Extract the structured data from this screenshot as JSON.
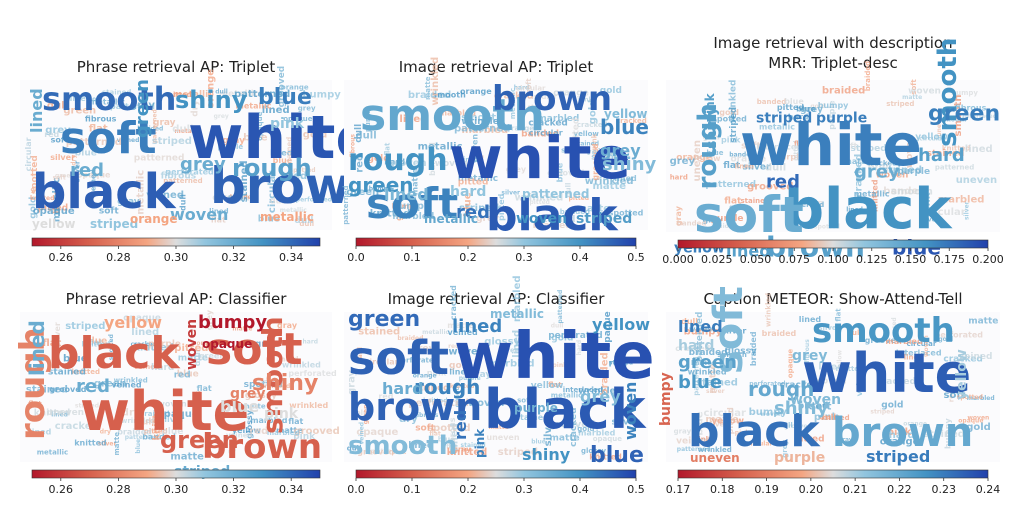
{
  "chart_data": [
    {
      "type": "wordcloud",
      "title": "Phrase retrieval AP: Triplet",
      "colorbar": {
        "min": 0.25,
        "max": 0.35,
        "ticks": [
          "0.26",
          "0.28",
          "0.30",
          "0.32",
          "0.34"
        ],
        "tick_values": [
          0.26,
          0.28,
          0.3,
          0.32,
          0.34
        ],
        "colormap": "coolwarm"
      },
      "words": [
        {
          "text": "white",
          "value": 0.345
        },
        {
          "text": "brown",
          "value": 0.342
        },
        {
          "text": "black",
          "value": 0.343
        },
        {
          "text": "soft",
          "value": 0.335
        },
        {
          "text": "smooth",
          "value": 0.34
        },
        {
          "text": "shiny",
          "value": 0.33
        },
        {
          "text": "blue",
          "value": 0.335
        },
        {
          "text": "rough",
          "value": 0.325
        },
        {
          "text": "grey",
          "value": 0.32
        },
        {
          "text": "lined",
          "value": 0.32
        },
        {
          "text": "green",
          "value": 0.33
        },
        {
          "text": "red",
          "value": 0.32
        },
        {
          "text": "pink",
          "value": 0.31
        },
        {
          "text": "woven",
          "value": 0.32
        },
        {
          "text": "striped",
          "value": 0.31
        },
        {
          "text": "yellow",
          "value": 0.3
        },
        {
          "text": "metallic",
          "value": 0.29
        },
        {
          "text": "orange",
          "value": 0.29
        }
      ]
    },
    {
      "type": "wordcloud",
      "title": "Image retrieval AP: Triplet",
      "colorbar": {
        "min": 0.0,
        "max": 0.5,
        "ticks": [
          "0.0",
          "0.1",
          "0.2",
          "0.3",
          "0.4",
          "0.5"
        ],
        "tick_values": [
          0.0,
          0.1,
          0.2,
          0.3,
          0.4,
          0.5
        ],
        "colormap": "coolwarm"
      },
      "words": [
        {
          "text": "white",
          "value": 0.48
        },
        {
          "text": "black",
          "value": 0.47
        },
        {
          "text": "smooth",
          "value": 0.36
        },
        {
          "text": "brown",
          "value": 0.46
        },
        {
          "text": "soft",
          "value": 0.42
        },
        {
          "text": "rough",
          "value": 0.4
        },
        {
          "text": "green",
          "value": 0.4
        },
        {
          "text": "blue",
          "value": 0.42
        },
        {
          "text": "shiny",
          "value": 0.32
        },
        {
          "text": "red",
          "value": 0.44
        },
        {
          "text": "woven",
          "value": 0.4
        },
        {
          "text": "striped",
          "value": 0.38
        },
        {
          "text": "lined",
          "value": 0.33
        },
        {
          "text": "grey",
          "value": 0.35
        },
        {
          "text": "hard",
          "value": 0.3
        },
        {
          "text": "yellow",
          "value": 0.32
        },
        {
          "text": "metallic",
          "value": 0.36
        },
        {
          "text": "patterned",
          "value": 0.3
        }
      ]
    },
    {
      "type": "wordcloud",
      "title": "Image retrieval with description\nMRR: Triplet-desc",
      "colorbar": {
        "min": 0.0,
        "max": 0.2,
        "ticks": [
          "0.000",
          "0.025",
          "0.050",
          "0.075",
          "0.100",
          "0.125",
          "0.150",
          "0.175",
          "0.200"
        ],
        "tick_values": [
          0.0,
          0.025,
          0.05,
          0.075,
          0.1,
          0.125,
          0.15,
          0.175,
          0.2
        ],
        "colormap": "coolwarm"
      },
      "words": [
        {
          "text": "white",
          "value": 0.17
        },
        {
          "text": "black",
          "value": 0.16
        },
        {
          "text": "soft",
          "value": 0.14
        },
        {
          "text": "brown",
          "value": 0.15
        },
        {
          "text": "smooth",
          "value": 0.16
        },
        {
          "text": "green",
          "value": 0.17
        },
        {
          "text": "rough",
          "value": 0.15
        },
        {
          "text": "blue",
          "value": 0.19
        },
        {
          "text": "hard",
          "value": 0.15
        },
        {
          "text": "red",
          "value": 0.18
        },
        {
          "text": "shiny",
          "value": 0.15
        },
        {
          "text": "yellow",
          "value": 0.17
        },
        {
          "text": "lined",
          "value": 0.15
        },
        {
          "text": "grey",
          "value": 0.14
        },
        {
          "text": "striped",
          "value": 0.17
        },
        {
          "text": "purple",
          "value": 0.17
        },
        {
          "text": "pink",
          "value": 0.15
        }
      ]
    },
    {
      "type": "wordcloud",
      "title": "Phrase retrieval AP: Classifier",
      "colorbar": {
        "min": 0.25,
        "max": 0.35,
        "ticks": [
          "0.26",
          "0.28",
          "0.30",
          "0.32",
          "0.34"
        ],
        "tick_values": [
          0.26,
          0.28,
          0.3,
          0.32,
          0.34
        ],
        "colormap": "coolwarm"
      },
      "words": [
        {
          "text": "white",
          "value": 0.27
        },
        {
          "text": "black",
          "value": 0.27
        },
        {
          "text": "soft",
          "value": 0.27
        },
        {
          "text": "brown",
          "value": 0.27
        },
        {
          "text": "rough",
          "value": 0.28
        },
        {
          "text": "smooth",
          "value": 0.27
        },
        {
          "text": "green",
          "value": 0.27
        },
        {
          "text": "lined",
          "value": 0.32
        },
        {
          "text": "shiny",
          "value": 0.28
        },
        {
          "text": "red",
          "value": 0.32
        },
        {
          "text": "blue",
          "value": 0.3
        },
        {
          "text": "bumpy",
          "value": 0.25
        },
        {
          "text": "woven",
          "value": 0.26
        },
        {
          "text": "striped",
          "value": 0.32
        },
        {
          "text": "grey",
          "value": 0.28
        },
        {
          "text": "pink",
          "value": 0.3
        },
        {
          "text": "yellow",
          "value": 0.29
        },
        {
          "text": "opaque",
          "value": 0.25
        }
      ]
    },
    {
      "type": "wordcloud",
      "title": "Image retrieval AP: Classifier",
      "colorbar": {
        "min": 0.0,
        "max": 0.5,
        "ticks": [
          "0.0",
          "0.1",
          "0.2",
          "0.3",
          "0.4",
          "0.5"
        ],
        "tick_values": [
          0.0,
          0.1,
          0.2,
          0.3,
          0.4,
          0.5
        ],
        "colormap": "coolwarm"
      },
      "words": [
        {
          "text": "white",
          "value": 0.48
        },
        {
          "text": "black",
          "value": 0.47
        },
        {
          "text": "soft",
          "value": 0.46
        },
        {
          "text": "brown",
          "value": 0.46
        },
        {
          "text": "smooth",
          "value": 0.32
        },
        {
          "text": "green",
          "value": 0.45
        },
        {
          "text": "blue",
          "value": 0.46
        },
        {
          "text": "rough",
          "value": 0.42
        },
        {
          "text": "lined",
          "value": 0.42
        },
        {
          "text": "shiny",
          "value": 0.4
        },
        {
          "text": "yellow",
          "value": 0.4
        },
        {
          "text": "woven",
          "value": 0.42
        },
        {
          "text": "red",
          "value": 0.44
        },
        {
          "text": "hard",
          "value": 0.35
        },
        {
          "text": "grey",
          "value": 0.32
        },
        {
          "text": "pink",
          "value": 0.42
        },
        {
          "text": "metallic",
          "value": 0.32
        },
        {
          "text": "purple",
          "value": 0.34
        }
      ]
    },
    {
      "type": "wordcloud",
      "title": "Caption METEOR: Show-Attend-Tell",
      "colorbar": {
        "min": 0.17,
        "max": 0.24,
        "ticks": [
          "0.17",
          "0.18",
          "0.19",
          "0.20",
          "0.21",
          "0.22",
          "0.23",
          "0.24"
        ],
        "tick_values": [
          0.17,
          0.18,
          0.19,
          0.2,
          0.21,
          0.22,
          0.23,
          0.24
        ],
        "colormap": "coolwarm"
      },
      "words": [
        {
          "text": "white",
          "value": 0.235
        },
        {
          "text": "black",
          "value": 0.232
        },
        {
          "text": "brown",
          "value": 0.22
        },
        {
          "text": "smooth",
          "value": 0.225
        },
        {
          "text": "soft",
          "value": 0.215
        },
        {
          "text": "green",
          "value": 0.222
        },
        {
          "text": "blue",
          "value": 0.225
        },
        {
          "text": "rough",
          "value": 0.22
        },
        {
          "text": "lined",
          "value": 0.23
        },
        {
          "text": "shiny",
          "value": 0.215
        },
        {
          "text": "striped",
          "value": 0.23
        },
        {
          "text": "hard",
          "value": 0.21
        },
        {
          "text": "grey",
          "value": 0.215
        },
        {
          "text": "yellow",
          "value": 0.21
        },
        {
          "text": "woven",
          "value": 0.215
        },
        {
          "text": "purple",
          "value": 0.2
        },
        {
          "text": "uneven",
          "value": 0.19
        },
        {
          "text": "bumpy",
          "value": 0.185
        }
      ]
    }
  ]
}
